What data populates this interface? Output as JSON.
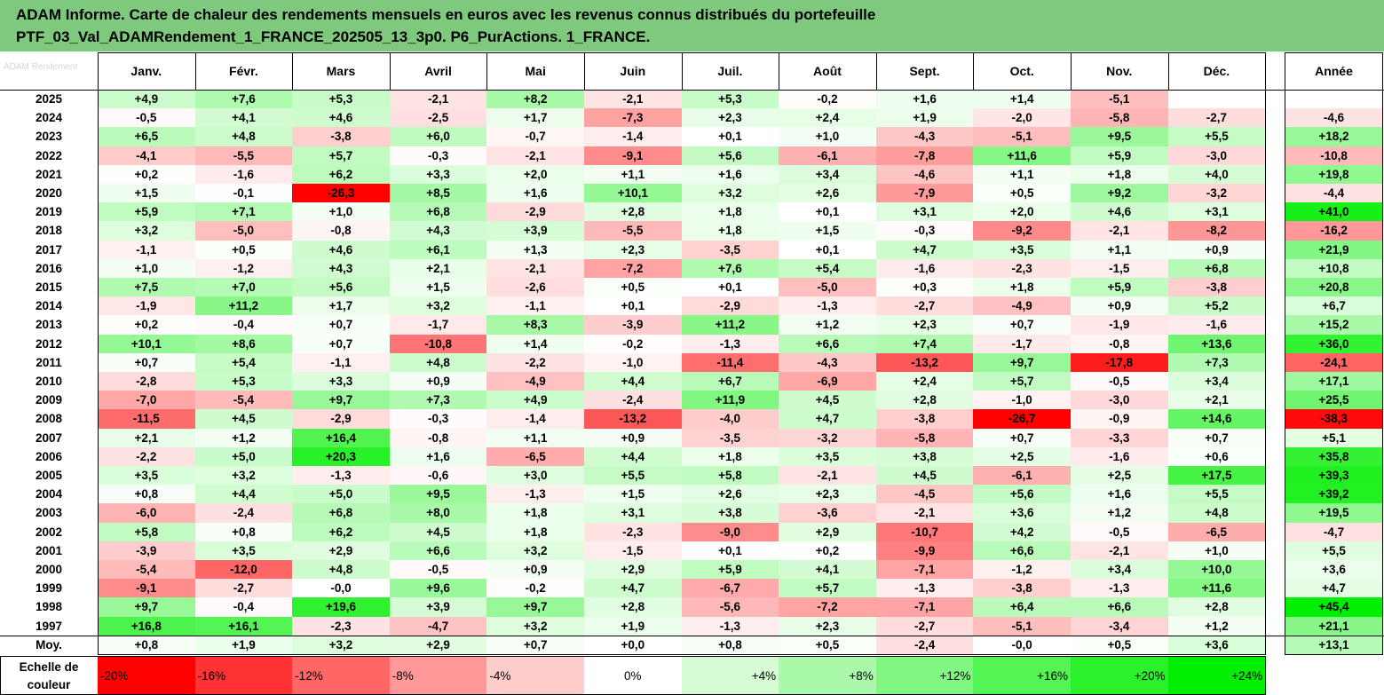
{
  "header": {
    "line1": "ADAM Informe. Carte de chaleur des rendements mensuels en euros avec les revenus connus distribués du portefeuille",
    "line2": "PTF_03_Val_ADAMRendement_1_FRANCE_202505_13_3p0. P6_PurActions. 1_FRANCE."
  },
  "colors": {
    "header_bg": "#7fc97f",
    "max_red": "#ff0000",
    "max_green": "#00ee00",
    "neutral": "#ffffff"
  },
  "chart_data": {
    "type": "heatmap",
    "title": "ADAM Informe. Carte de chaleur des rendements mensuels en euros avec les revenus connus distribués du portefeuille",
    "subtitle": "PTF_03_Val_ADAMRendement_1_FRANCE_202505_13_3p0. P6_PurActions. 1_FRANCE.",
    "columns": [
      "Janv.",
      "Févr.",
      "Mars",
      "Avril",
      "Mai",
      "Juin",
      "Juil.",
      "Août",
      "Sept.",
      "Oct.",
      "Nov.",
      "Déc."
    ],
    "year_column": "Année",
    "rows": [
      {
        "label": "2025",
        "values": [
          "+4,9",
          "+7,6",
          "+5,3",
          "-2,1",
          "+8,2",
          "-2,1",
          "+5,3",
          "-0,2",
          "+1,6",
          "+1,4",
          "-5,1",
          ""
        ],
        "year": ""
      },
      {
        "label": "2024",
        "values": [
          "-0,5",
          "+4,1",
          "+4,6",
          "-2,5",
          "+1,7",
          "-7,3",
          "+2,3",
          "+2,4",
          "+1,9",
          "-2,0",
          "-5,8",
          "-2,7"
        ],
        "year": "-4,6"
      },
      {
        "label": "2023",
        "values": [
          "+6,5",
          "+4,8",
          "-3,8",
          "+6,0",
          "-0,7",
          "-1,4",
          "+0,1",
          "+1,0",
          "-4,3",
          "-5,1",
          "+9,5",
          "+5,5"
        ],
        "year": "+18,2"
      },
      {
        "label": "2022",
        "values": [
          "-4,1",
          "-5,5",
          "+5,7",
          "-0,3",
          "-2,1",
          "-9,1",
          "+5,6",
          "-6,1",
          "-7,8",
          "+11,6",
          "+5,9",
          "-3,0"
        ],
        "year": "-10,8"
      },
      {
        "label": "2021",
        "values": [
          "+0,2",
          "-1,6",
          "+6,2",
          "+3,3",
          "+2,0",
          "+1,1",
          "+1,6",
          "+3,4",
          "-4,6",
          "+1,1",
          "+1,8",
          "+4,0"
        ],
        "year": "+19,8"
      },
      {
        "label": "2020",
        "values": [
          "+1,5",
          "-0,1",
          "-26,3",
          "+8,5",
          "+1,6",
          "+10,1",
          "+3,2",
          "+2,6",
          "-7,9",
          "+0,5",
          "+9,2",
          "-3,2"
        ],
        "year": "-4,4"
      },
      {
        "label": "2019",
        "values": [
          "+5,9",
          "+7,1",
          "+1,0",
          "+6,8",
          "-2,9",
          "+2,8",
          "+1,8",
          "+0,1",
          "+3,1",
          "+2,0",
          "+4,6",
          "+3,1"
        ],
        "year": "+41,0"
      },
      {
        "label": "2018",
        "values": [
          "+3,2",
          "-5,0",
          "-0,8",
          "+4,3",
          "+3,9",
          "-5,5",
          "+1,8",
          "+1,5",
          "-0,3",
          "-9,2",
          "-2,1",
          "-8,2"
        ],
        "year": "-16,2"
      },
      {
        "label": "2017",
        "values": [
          "-1,1",
          "+0,5",
          "+4,6",
          "+6,1",
          "+1,3",
          "+2,3",
          "-3,5",
          "+0,1",
          "+4,7",
          "+3,5",
          "+1,1",
          "+0,9"
        ],
        "year": "+21,9"
      },
      {
        "label": "2016",
        "values": [
          "+1,0",
          "-1,2",
          "+4,3",
          "+2,1",
          "-2,1",
          "-7,2",
          "+7,6",
          "+5,4",
          "-1,6",
          "-2,3",
          "-1,5",
          "+6,8"
        ],
        "year": "+10,8"
      },
      {
        "label": "2015",
        "values": [
          "+7,5",
          "+7,0",
          "+5,6",
          "+1,5",
          "-2,6",
          "+0,5",
          "+0,1",
          "-5,0",
          "+0,3",
          "+1,8",
          "+5,9",
          "-3,8"
        ],
        "year": "+20,8"
      },
      {
        "label": "2014",
        "values": [
          "-1,9",
          "+11,2",
          "+1,7",
          "+3,2",
          "-1,1",
          "+0,1",
          "-2,9",
          "-1,3",
          "-2,7",
          "-4,9",
          "+0,9",
          "+5,2"
        ],
        "year": "+6,7"
      },
      {
        "label": "2013",
        "values": [
          "+0,2",
          "-0,4",
          "+0,7",
          "-1,7",
          "+8,3",
          "-3,9",
          "+11,2",
          "+1,2",
          "+2,3",
          "+0,7",
          "-1,9",
          "-1,6"
        ],
        "year": "+15,2"
      },
      {
        "label": "2012",
        "values": [
          "+10,1",
          "+8,6",
          "+0,7",
          "-10,8",
          "+1,4",
          "-0,2",
          "-1,3",
          "+6,6",
          "+7,4",
          "-1,7",
          "-0,8",
          "+13,6"
        ],
        "year": "+36,0"
      },
      {
        "label": "2011",
        "values": [
          "+0,7",
          "+5,4",
          "-1,1",
          "+4,8",
          "-2,2",
          "-1,0",
          "-11,4",
          "-4,3",
          "-13,2",
          "+9,7",
          "-17,8",
          "+7,3"
        ],
        "year": "-24,1"
      },
      {
        "label": "2010",
        "values": [
          "-2,8",
          "+5,3",
          "+3,3",
          "+0,9",
          "-4,9",
          "+4,4",
          "+6,7",
          "-6,9",
          "+2,4",
          "+5,7",
          "-0,5",
          "+3,4"
        ],
        "year": "+17,1"
      },
      {
        "label": "2009",
        "values": [
          "-7,0",
          "-5,4",
          "+9,7",
          "+7,3",
          "+4,9",
          "-2,4",
          "+11,9",
          "+4,5",
          "+2,8",
          "-1,0",
          "-3,0",
          "+2,1"
        ],
        "year": "+25,5"
      },
      {
        "label": "2008",
        "values": [
          "-11,5",
          "+4,5",
          "-2,9",
          "-0,3",
          "-1,4",
          "-13,2",
          "-4,0",
          "+4,7",
          "-3,8",
          "-26,7",
          "-0,9",
          "+14,6"
        ],
        "year": "-38,3"
      },
      {
        "label": "2007",
        "values": [
          "+2,1",
          "+1,2",
          "+16,4",
          "-0,8",
          "+1,1",
          "+0,9",
          "-3,5",
          "-3,2",
          "-5,8",
          "+0,7",
          "-3,3",
          "+0,7"
        ],
        "year": "+5,1"
      },
      {
        "label": "2006",
        "values": [
          "-2,2",
          "+5,0",
          "+20,3",
          "+1,6",
          "-6,5",
          "+4,4",
          "+1,8",
          "+3,5",
          "+3,8",
          "+2,5",
          "-1,6",
          "+0,6"
        ],
        "year": "+35,8"
      },
      {
        "label": "2005",
        "values": [
          "+3,5",
          "+3,2",
          "-1,3",
          "-0,6",
          "+3,0",
          "+5,5",
          "+5,8",
          "-2,1",
          "+4,5",
          "-6,1",
          "+2,5",
          "+17,5"
        ],
        "year": "+39,3"
      },
      {
        "label": "2004",
        "values": [
          "+0,8",
          "+4,4",
          "+5,0",
          "+9,5",
          "-1,3",
          "+1,5",
          "+2,6",
          "+2,3",
          "-4,5",
          "+5,6",
          "+1,6",
          "+5,5"
        ],
        "year": "+39,2"
      },
      {
        "label": "2003",
        "values": [
          "-6,0",
          "-2,4",
          "+6,8",
          "+8,0",
          "+1,8",
          "+3,1",
          "+3,8",
          "-3,6",
          "-2,1",
          "+3,6",
          "+1,2",
          "+4,8"
        ],
        "year": "+19,5"
      },
      {
        "label": "2002",
        "values": [
          "+5,8",
          "+0,8",
          "+6,2",
          "+4,5",
          "+1,8",
          "-2,3",
          "-9,0",
          "+2,9",
          "-10,7",
          "+4,2",
          "-0,5",
          "-6,5"
        ],
        "year": "-4,7"
      },
      {
        "label": "2001",
        "values": [
          "-3,9",
          "+3,5",
          "+2,9",
          "+6,6",
          "+3,2",
          "-1,5",
          "+0,1",
          "+0,2",
          "-9,9",
          "+6,6",
          "-2,1",
          "+1,0"
        ],
        "year": "+5,5"
      },
      {
        "label": "2000",
        "values": [
          "-5,4",
          "-12,0",
          "+4,8",
          "-0,5",
          "+0,9",
          "+2,9",
          "+5,9",
          "+4,1",
          "-7,1",
          "-1,2",
          "+3,4",
          "+10,0"
        ],
        "year": "+3,6"
      },
      {
        "label": "1999",
        "values": [
          "-9,1",
          "-2,7",
          "-0,0",
          "+9,6",
          "-0,2",
          "+4,7",
          "-6,7",
          "+5,7",
          "-1,3",
          "-3,8",
          "-1,3",
          "+11,6"
        ],
        "year": "+4,7"
      },
      {
        "label": "1998",
        "values": [
          "+9,7",
          "-0,4",
          "+19,6",
          "+3,9",
          "+9,7",
          "+2,8",
          "-5,6",
          "-7,2",
          "-7,1",
          "+6,4",
          "+6,6",
          "+2,8"
        ],
        "year": "+45,4"
      },
      {
        "label": "1997",
        "values": [
          "+16,8",
          "+16,1",
          "-2,3",
          "-4,7",
          "+3,2",
          "+1,9",
          "-1,3",
          "+2,3",
          "-2,7",
          "-5,1",
          "-3,4",
          "+1,2"
        ],
        "year": "+21,1"
      },
      {
        "label": "Moy.",
        "values": [
          "+0,8",
          "+1,9",
          "+3,2",
          "+2,9",
          "+0,7",
          "+0,0",
          "+0,8",
          "+0,5",
          "-2,4",
          "-0,0",
          "+0,5",
          "+3,6"
        ],
        "year": "+13,1"
      }
    ],
    "color_scale": {
      "label_line1": "Echelle de",
      "label_line2": "couleur",
      "steps": [
        "-20%",
        "-16%",
        "-12%",
        "-8%",
        "-4%",
        "0%",
        "+4%",
        "+8%",
        "+12%",
        "+16%",
        "+20%",
        "+24%"
      ]
    }
  }
}
